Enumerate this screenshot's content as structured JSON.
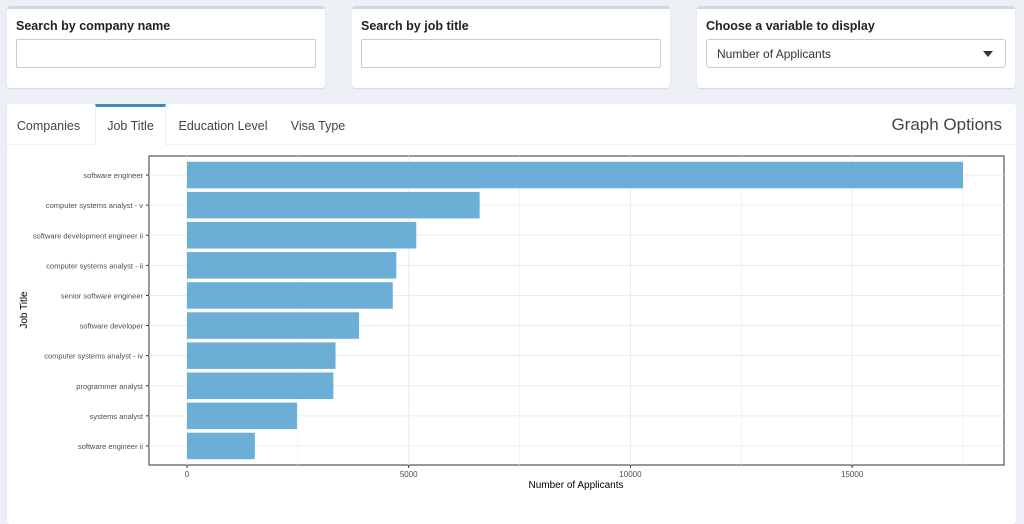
{
  "filters": {
    "company": {
      "label": "Search by company name",
      "value": ""
    },
    "job_title": {
      "label": "Search by job title",
      "value": ""
    },
    "variable": {
      "label": "Choose a variable to display",
      "selected": "Number of Applicants"
    }
  },
  "tabs": [
    {
      "label": "Companies",
      "active": false
    },
    {
      "label": "Job Title",
      "active": true
    },
    {
      "label": "Education Level",
      "active": false
    },
    {
      "label": "Visa Type",
      "active": false
    }
  ],
  "graph_options_label": "Graph Options",
  "colors": {
    "bar": "#6baed6",
    "tab_accent": "#3c8dbc"
  },
  "chart_data": {
    "type": "bar",
    "orientation": "horizontal",
    "xlabel": "Number of Applicants",
    "ylabel": "Job Title",
    "xlim": [
      0,
      17500
    ],
    "xticks": [
      0,
      5000,
      10000,
      15000
    ],
    "grid": true,
    "categories": [
      "software engineer",
      "computer systems analyst - v",
      "software development engineer ii",
      "computer systems analyst - ii",
      "senior software engineer",
      "software developer",
      "computer systems analyst - iv",
      "programmer analyst",
      "systems analyst",
      "software engineer ii"
    ],
    "values": [
      17500,
      6600,
      5170,
      4720,
      4640,
      3880,
      3350,
      3300,
      2480,
      1530
    ]
  }
}
